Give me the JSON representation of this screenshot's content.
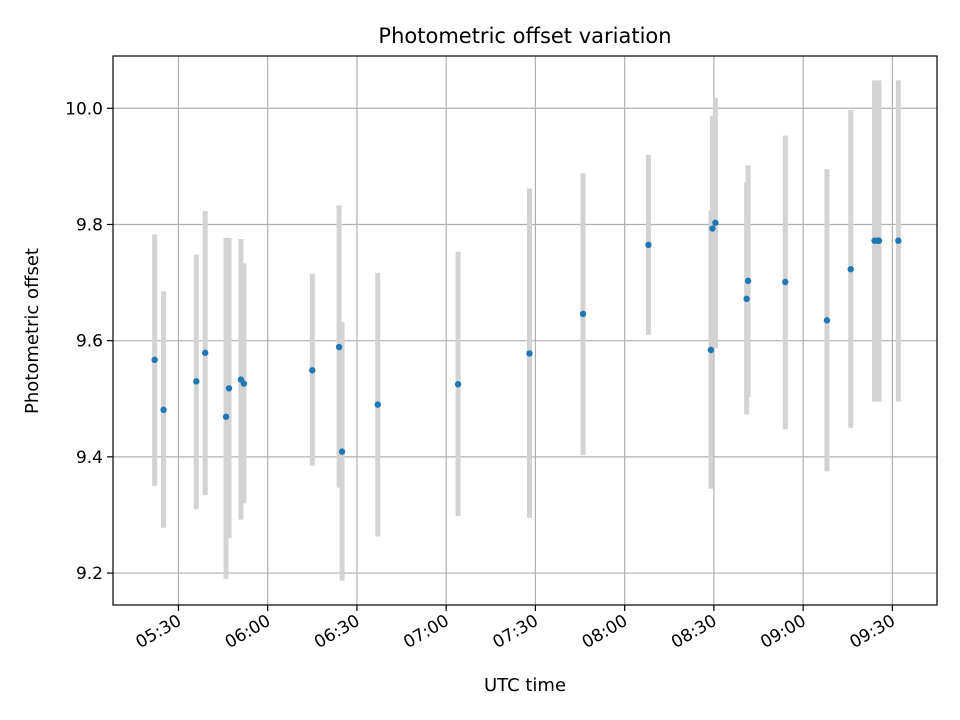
{
  "chart_data": {
    "type": "scatter",
    "title": "Photometric offset variation",
    "xlabel": "UTC time",
    "ylabel": "Photometric offset",
    "x_is_time": true,
    "xlim": [
      "05:08",
      "09:45"
    ],
    "ylim": [
      9.145,
      10.09
    ],
    "xticks": [
      {
        "value": "05:30",
        "label": "05:30"
      },
      {
        "value": "06:00",
        "label": "06:00"
      },
      {
        "value": "06:30",
        "label": "06:30"
      },
      {
        "value": "07:00",
        "label": "07:00"
      },
      {
        "value": "07:30",
        "label": "07:30"
      },
      {
        "value": "08:00",
        "label": "08:00"
      },
      {
        "value": "08:30",
        "label": "08:30"
      },
      {
        "value": "09:00",
        "label": "09:00"
      },
      {
        "value": "09:30",
        "label": "09:30"
      }
    ],
    "yticks": [
      {
        "value": 9.2,
        "label": "9.2"
      },
      {
        "value": 9.4,
        "label": "9.4"
      },
      {
        "value": 9.6,
        "label": "9.6"
      },
      {
        "value": 9.8,
        "label": "9.8"
      },
      {
        "value": 10.0,
        "label": "10.0"
      }
    ],
    "grid": true,
    "marker_color": "#1f77b4",
    "errorbar_color": "#d3d3d3",
    "points": [
      {
        "t": "05:22",
        "y": 9.567,
        "lo": 9.35,
        "hi": 9.783
      },
      {
        "t": "05:25",
        "y": 9.481,
        "lo": 9.278,
        "hi": 9.685
      },
      {
        "t": "05:36",
        "y": 9.53,
        "lo": 9.31,
        "hi": 9.748
      },
      {
        "t": "05:39",
        "y": 9.579,
        "lo": 9.334,
        "hi": 9.823
      },
      {
        "t": "05:46",
        "y": 9.469,
        "lo": 9.19,
        "hi": 9.777
      },
      {
        "t": "05:47",
        "y": 9.518,
        "lo": 9.26,
        "hi": 9.777
      },
      {
        "t": "05:51",
        "y": 9.533,
        "lo": 9.292,
        "hi": 9.775
      },
      {
        "t": "05:52",
        "y": 9.526,
        "lo": 9.32,
        "hi": 9.733
      },
      {
        "t": "06:15",
        "y": 9.549,
        "lo": 9.385,
        "hi": 9.715
      },
      {
        "t": "06:24",
        "y": 9.589,
        "lo": 9.347,
        "hi": 9.833
      },
      {
        "t": "06:25",
        "y": 9.409,
        "lo": 9.187,
        "hi": 9.632
      },
      {
        "t": "06:37",
        "y": 9.49,
        "lo": 9.263,
        "hi": 9.717
      },
      {
        "t": "07:04",
        "y": 9.525,
        "lo": 9.298,
        "hi": 9.753
      },
      {
        "t": "07:28",
        "y": 9.578,
        "lo": 9.295,
        "hi": 9.862
      },
      {
        "t": "07:46",
        "y": 9.646,
        "lo": 9.403,
        "hi": 9.888
      },
      {
        "t": "08:08",
        "y": 9.765,
        "lo": 9.61,
        "hi": 9.92
      },
      {
        "t": "08:29",
        "y": 9.584,
        "lo": 9.345,
        "hi": 9.823
      },
      {
        "t": "08:29.5",
        "y": 9.793,
        "lo": 9.6,
        "hi": 9.987
      },
      {
        "t": "08:30.5",
        "y": 9.803,
        "lo": 9.587,
        "hi": 10.018
      },
      {
        "t": "08:41",
        "y": 9.672,
        "lo": 9.473,
        "hi": 9.872
      },
      {
        "t": "08:41.5",
        "y": 9.703,
        "lo": 9.503,
        "hi": 9.902
      },
      {
        "t": "08:54",
        "y": 9.701,
        "lo": 9.447,
        "hi": 9.953
      },
      {
        "t": "09:08",
        "y": 9.635,
        "lo": 9.375,
        "hi": 9.895
      },
      {
        "t": "09:16",
        "y": 9.723,
        "lo": 9.45,
        "hi": 9.997
      },
      {
        "t": "09:24",
        "y": 9.772,
        "lo": 9.495,
        "hi": 10.048
      },
      {
        "t": "09:25",
        "y": 9.772,
        "lo": 9.495,
        "hi": 10.048
      },
      {
        "t": "09:25.5",
        "y": 9.772,
        "lo": 9.495,
        "hi": 10.048
      },
      {
        "t": "09:32",
        "y": 9.772,
        "lo": 9.495,
        "hi": 10.048
      }
    ]
  }
}
